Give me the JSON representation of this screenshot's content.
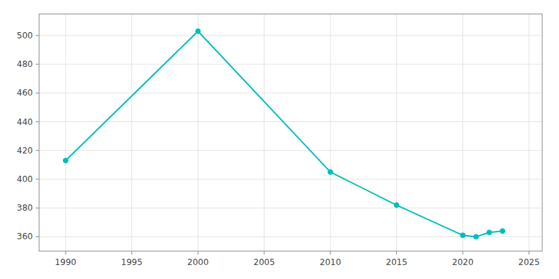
{
  "chart_data": {
    "type": "line",
    "x": [
      1990,
      2000,
      2010,
      2015,
      2020,
      2021,
      2022,
      2023
    ],
    "values": [
      413,
      503,
      405,
      382,
      361,
      360,
      363,
      364
    ],
    "color": "#00BEBE",
    "marker": "circle",
    "xlim": [
      1988,
      2026
    ],
    "ylim": [
      350,
      515
    ],
    "xticks": [
      1990,
      1995,
      2000,
      2005,
      2010,
      2015,
      2020,
      2025
    ],
    "yticks": [
      360,
      380,
      400,
      420,
      440,
      460,
      480,
      500
    ],
    "grid": true
  }
}
